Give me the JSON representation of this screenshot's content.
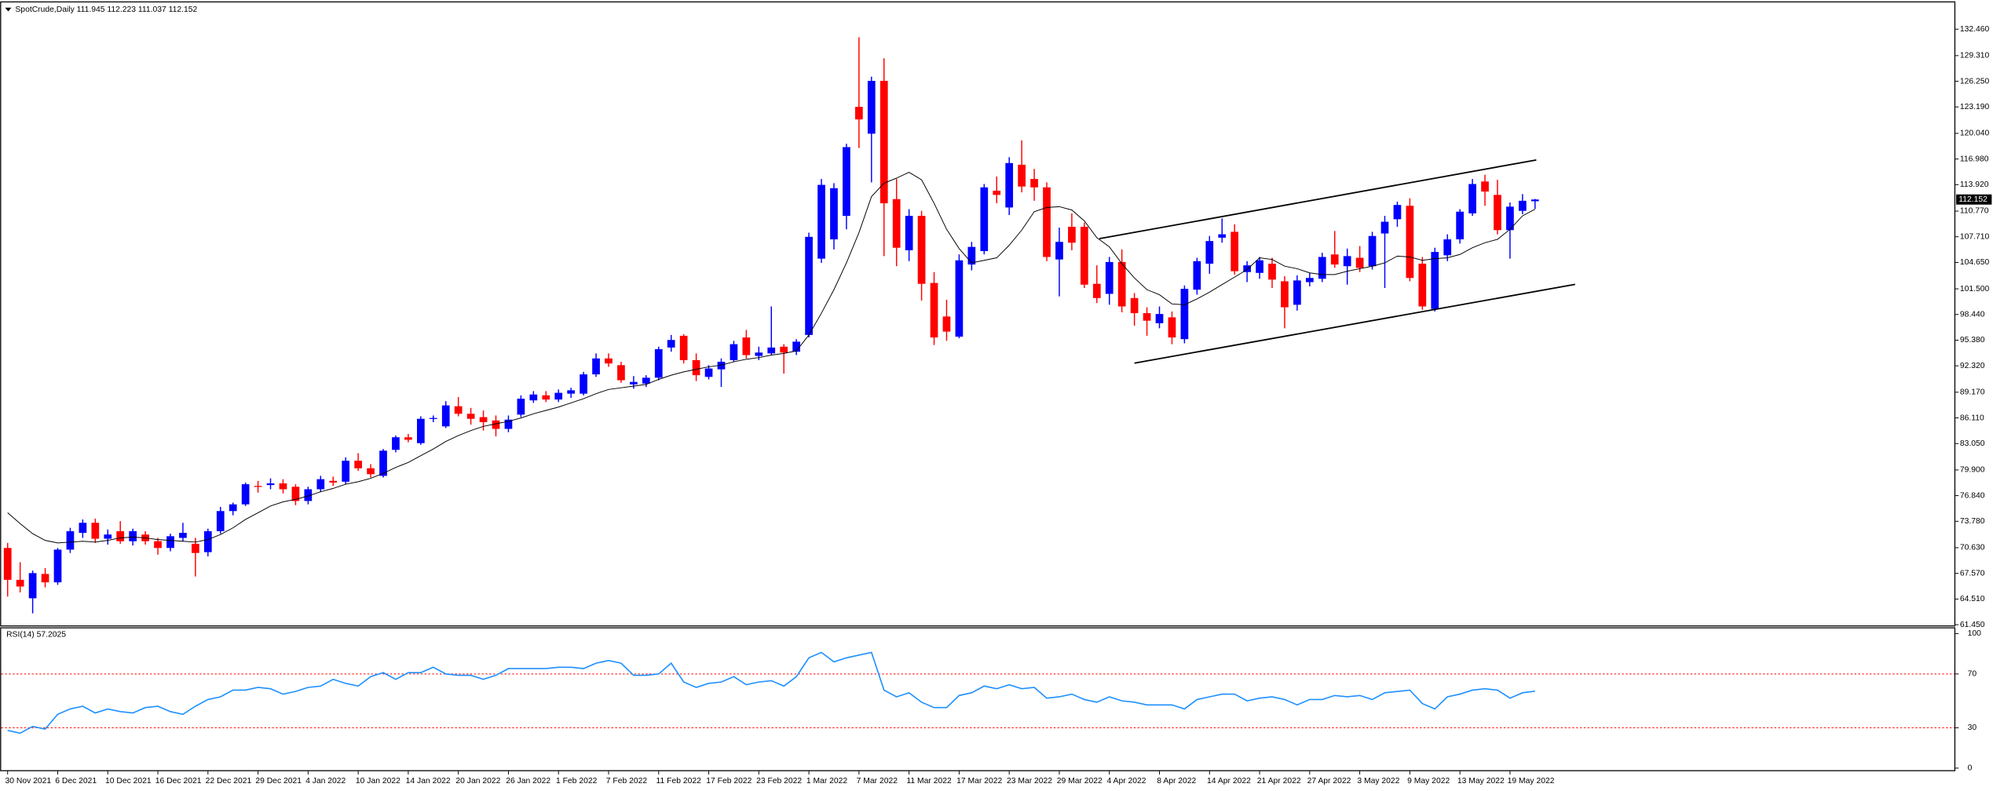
{
  "chart_data": [
    {
      "type": "candlestick",
      "title": "SpotCrude,Daily  111.945 112.223 111.037 112.152",
      "up_color": "#0000ff",
      "down_color": "#ff0000",
      "ma_color": "#000000",
      "trendline_color": "#000000",
      "x": [
        "30 Nov 2021",
        null,
        null,
        null,
        "6 Dec 2021",
        null,
        null,
        null,
        "10 Dec 2021",
        null,
        null,
        null,
        "16 Dec 2021",
        null,
        null,
        null,
        "22 Dec 2021",
        null,
        null,
        null,
        "29 Dec 2021",
        null,
        null,
        null,
        "4 Jan 2022",
        null,
        null,
        null,
        "10 Jan 2022",
        null,
        null,
        null,
        "14 Jan 2022",
        null,
        null,
        null,
        "20 Jan 2022",
        null,
        null,
        null,
        "26 Jan 2022",
        null,
        null,
        null,
        "1 Feb 2022",
        null,
        null,
        null,
        "7 Feb 2022",
        null,
        null,
        null,
        "11 Feb 2022",
        null,
        null,
        null,
        "17 Feb 2022",
        null,
        null,
        null,
        "23 Feb 2022",
        null,
        null,
        null,
        "1 Mar 2022",
        null,
        null,
        null,
        "7 Mar 2022",
        null,
        null,
        null,
        "11 Mar 2022",
        null,
        null,
        null,
        "17 Mar 2022",
        null,
        null,
        null,
        "23 Mar 2022",
        null,
        null,
        null,
        "29 Mar 2022",
        null,
        null,
        null,
        "4 Apr 2022",
        null,
        null,
        null,
        "8 Apr 2022",
        null,
        null,
        null,
        "14 Apr 2022",
        null,
        null,
        null,
        "21 Apr 2022",
        null,
        null,
        null,
        "27 Apr 2022",
        null,
        null,
        null,
        "3 May 2022",
        null,
        null,
        null,
        "9 May 2022",
        null,
        null,
        null,
        "13 May 2022",
        null,
        null,
        null,
        "19 May 2022",
        null,
        null
      ],
      "ohlc": [
        [
          70.6,
          71.2,
          64.8,
          66.8
        ],
        [
          66.8,
          68.9,
          65.3,
          66.0
        ],
        [
          64.6,
          67.9,
          62.8,
          67.6
        ],
        [
          67.5,
          68.2,
          65.9,
          66.5
        ],
        [
          66.5,
          70.6,
          66.2,
          70.4
        ],
        [
          70.4,
          73.0,
          70.0,
          72.6
        ],
        [
          72.4,
          74.0,
          71.8,
          73.6
        ],
        [
          73.6,
          74.1,
          71.2,
          71.7
        ],
        [
          71.7,
          72.8,
          71.0,
          72.2
        ],
        [
          72.6,
          73.8,
          71.1,
          71.4
        ],
        [
          71.4,
          72.9,
          70.9,
          72.6
        ],
        [
          72.2,
          72.6,
          71.0,
          71.4
        ],
        [
          71.4,
          71.8,
          69.8,
          70.6
        ],
        [
          70.6,
          72.3,
          70.2,
          72.0
        ],
        [
          71.8,
          73.6,
          71.4,
          72.4
        ],
        [
          71.1,
          71.8,
          67.2,
          70.0
        ],
        [
          70.1,
          72.9,
          69.6,
          72.6
        ],
        [
          72.6,
          75.5,
          72.3,
          75.0
        ],
        [
          75.0,
          76.0,
          74.5,
          75.8
        ],
        [
          75.8,
          78.4,
          75.6,
          78.2
        ],
        [
          78.0,
          78.6,
          77.2,
          77.9
        ],
        [
          78.1,
          78.9,
          77.6,
          78.3
        ],
        [
          78.3,
          78.8,
          77.1,
          77.6
        ],
        [
          77.9,
          78.2,
          75.7,
          76.2
        ],
        [
          76.2,
          77.9,
          75.8,
          77.6
        ],
        [
          77.6,
          79.2,
          77.3,
          78.8
        ],
        [
          78.6,
          79.1,
          78.0,
          78.4
        ],
        [
          78.5,
          81.4,
          78.2,
          81.0
        ],
        [
          81.0,
          81.9,
          79.8,
          80.1
        ],
        [
          80.1,
          80.6,
          79.0,
          79.4
        ],
        [
          79.2,
          82.4,
          79.0,
          82.2
        ],
        [
          82.3,
          84.0,
          82.0,
          83.8
        ],
        [
          83.8,
          84.2,
          83.2,
          83.5
        ],
        [
          83.1,
          86.3,
          82.9,
          86.0
        ],
        [
          86.0,
          86.4,
          85.6,
          86.1
        ],
        [
          85.1,
          88.1,
          84.9,
          87.6
        ],
        [
          87.5,
          88.6,
          86.3,
          86.6
        ],
        [
          86.6,
          87.3,
          85.3,
          86.0
        ],
        [
          86.2,
          87.0,
          84.6,
          85.6
        ],
        [
          85.8,
          86.4,
          83.9,
          84.8
        ],
        [
          84.8,
          86.4,
          84.4,
          85.9
        ],
        [
          86.5,
          88.8,
          86.2,
          88.4
        ],
        [
          88.2,
          89.3,
          87.9,
          88.9
        ],
        [
          88.8,
          89.3,
          88.0,
          88.3
        ],
        [
          88.3,
          89.5,
          88.0,
          89.1
        ],
        [
          89.0,
          89.7,
          88.5,
          89.4
        ],
        [
          89.0,
          91.6,
          88.8,
          91.3
        ],
        [
          91.3,
          93.8,
          91.0,
          93.2
        ],
        [
          93.2,
          93.8,
          92.2,
          92.6
        ],
        [
          92.4,
          92.8,
          90.3,
          90.6
        ],
        [
          90.1,
          91.1,
          89.6,
          90.4
        ],
        [
          90.2,
          91.2,
          89.8,
          90.9
        ],
        [
          90.9,
          94.6,
          90.6,
          94.3
        ],
        [
          94.5,
          96.0,
          94.0,
          95.4
        ],
        [
          95.9,
          96.1,
          92.6,
          93.0
        ],
        [
          93.0,
          93.8,
          90.5,
          91.2
        ],
        [
          91.0,
          92.4,
          90.7,
          92.0
        ],
        [
          91.9,
          93.2,
          89.8,
          92.8
        ],
        [
          93.0,
          95.3,
          92.8,
          94.9
        ],
        [
          95.7,
          96.6,
          93.2,
          93.6
        ],
        [
          93.5,
          94.6,
          93.0,
          93.9
        ],
        [
          93.8,
          99.4,
          93.6,
          94.5
        ],
        [
          94.6,
          94.9,
          91.4,
          93.9
        ],
        [
          94.0,
          95.5,
          93.6,
          95.2
        ],
        [
          96.0,
          108.2,
          95.7,
          107.7
        ],
        [
          105.1,
          114.6,
          104.6,
          113.9
        ],
        [
          107.4,
          114.1,
          106.2,
          113.5
        ],
        [
          110.2,
          118.8,
          108.6,
          118.4
        ],
        [
          123.2,
          131.5,
          118.3,
          121.7
        ],
        [
          120.0,
          126.8,
          114.2,
          126.3
        ],
        [
          126.3,
          129.0,
          105.4,
          111.7
        ],
        [
          112.2,
          114.6,
          104.2,
          106.4
        ],
        [
          106.1,
          111.0,
          104.8,
          110.2
        ],
        [
          110.2,
          110.8,
          100.1,
          102.1
        ],
        [
          102.2,
          103.5,
          94.8,
          95.7
        ],
        [
          98.2,
          100.2,
          95.3,
          96.4
        ],
        [
          95.8,
          105.6,
          95.6,
          104.9
        ],
        [
          104.4,
          107.1,
          103.7,
          106.5
        ],
        [
          106.0,
          114.0,
          105.6,
          113.6
        ],
        [
          113.2,
          114.9,
          111.7,
          112.7
        ],
        [
          111.2,
          117.2,
          110.3,
          116.5
        ],
        [
          116.3,
          119.2,
          113.0,
          113.7
        ],
        [
          114.6,
          115.8,
          112.0,
          113.6
        ],
        [
          113.6,
          114.2,
          104.8,
          105.3
        ],
        [
          105.0,
          108.8,
          100.6,
          107.1
        ],
        [
          108.9,
          110.5,
          106.1,
          107.0
        ],
        [
          108.9,
          109.4,
          101.6,
          102.0
        ],
        [
          102.1,
          104.3,
          99.8,
          100.4
        ],
        [
          100.9,
          105.3,
          99.6,
          104.7
        ],
        [
          104.7,
          106.2,
          98.7,
          99.4
        ],
        [
          100.4,
          101.0,
          97.1,
          98.6
        ],
        [
          98.6,
          99.3,
          95.9,
          97.7
        ],
        [
          97.4,
          99.4,
          96.8,
          98.5
        ],
        [
          98.1,
          98.8,
          94.9,
          95.7
        ],
        [
          95.5,
          101.9,
          95.0,
          101.5
        ],
        [
          101.4,
          105.2,
          100.8,
          104.8
        ],
        [
          104.5,
          107.8,
          103.3,
          107.2
        ],
        [
          107.6,
          109.9,
          107.0,
          108.0
        ],
        [
          108.3,
          109.2,
          103.2,
          103.6
        ],
        [
          103.5,
          104.8,
          102.3,
          104.3
        ],
        [
          103.4,
          105.3,
          102.7,
          104.9
        ],
        [
          104.5,
          105.2,
          101.6,
          102.6
        ],
        [
          102.4,
          103.0,
          96.8,
          99.3
        ],
        [
          99.6,
          103.1,
          98.9,
          102.5
        ],
        [
          102.3,
          103.4,
          101.8,
          102.8
        ],
        [
          102.7,
          105.8,
          102.3,
          105.3
        ],
        [
          105.6,
          108.4,
          104.0,
          104.4
        ],
        [
          104.2,
          106.3,
          102.0,
          105.4
        ],
        [
          105.2,
          106.6,
          103.5,
          104.0
        ],
        [
          104.2,
          108.3,
          103.8,
          107.8
        ],
        [
          108.1,
          110.2,
          101.6,
          109.5
        ],
        [
          109.8,
          111.9,
          108.9,
          111.5
        ],
        [
          111.4,
          112.3,
          102.4,
          102.8
        ],
        [
          104.5,
          105.3,
          99.0,
          99.4
        ],
        [
          99.1,
          106.4,
          98.8,
          105.9
        ],
        [
          105.5,
          108.0,
          104.8,
          107.4
        ],
        [
          107.4,
          111.0,
          106.9,
          110.7
        ],
        [
          110.5,
          114.6,
          110.2,
          114.0
        ],
        [
          114.3,
          115.1,
          111.4,
          113.1
        ],
        [
          112.7,
          114.5,
          108.0,
          108.5
        ],
        [
          108.5,
          111.8,
          105.1,
          111.3
        ],
        [
          110.8,
          112.8,
          110.4,
          112.0
        ],
        [
          111.945,
          112.223,
          111.037,
          112.152
        ]
      ],
      "ma": [
        74.8,
        73.5,
        72.3,
        71.5,
        71.2,
        71.3,
        71.4,
        71.3,
        71.5,
        71.8,
        71.9,
        71.8,
        71.6,
        71.5,
        71.4,
        71.3,
        71.6,
        72.2,
        73.0,
        74.0,
        74.8,
        75.6,
        76.1,
        76.4,
        76.8,
        77.3,
        77.7,
        78.2,
        78.5,
        78.9,
        79.5,
        80.2,
        80.8,
        81.6,
        82.4,
        83.3,
        84.0,
        84.6,
        85.1,
        85.4,
        85.7,
        86.1,
        86.6,
        87.0,
        87.4,
        87.9,
        88.4,
        89.0,
        89.5,
        89.7,
        89.9,
        90.1,
        90.7,
        91.2,
        91.6,
        91.9,
        92.2,
        92.4,
        92.8,
        93.1,
        93.3,
        93.6,
        93.8,
        94.1,
        96.0,
        98.6,
        101.4,
        104.6,
        108.2,
        112.5,
        114.1,
        114.7,
        115.4,
        114.5,
        111.7,
        108.6,
        106.3,
        104.6,
        104.9,
        105.2,
        106.7,
        108.5,
        110.7,
        111.2,
        111.3,
        110.9,
        109.6,
        107.6,
        106.5,
        104.5,
        102.8,
        101.4,
        100.8,
        99.7,
        99.6,
        100.3,
        101.1,
        102.0,
        102.9,
        103.8,
        105.2,
        105.0,
        104.2,
        103.9,
        103.4,
        103.2,
        103.2,
        103.6,
        103.9,
        104.2,
        104.6,
        105.4,
        105.3,
        104.9,
        105.1,
        105.2,
        105.6,
        106.4,
        107.0,
        107.4,
        108.6,
        110.2,
        111.0
      ],
      "trendlines": [
        {
          "x": [
            87.2,
            122.1
          ],
          "y": [
            107.48,
            116.87
          ]
        },
        {
          "x": [
            90.0,
            125.2
          ],
          "y": [
            92.64,
            102.03
          ]
        }
      ],
      "ylim": [
        61.3,
        135.64
      ],
      "yticks": [
        {
          "value": 132.46,
          "label": "132.460"
        },
        {
          "value": 129.31,
          "label": "129.310"
        },
        {
          "value": 126.25,
          "label": "126.250"
        },
        {
          "value": 123.19,
          "label": "123.190"
        },
        {
          "value": 120.04,
          "label": "120.040"
        },
        {
          "value": 116.98,
          "label": "116.980"
        },
        {
          "value": 113.92,
          "label": "113.920"
        },
        {
          "value": 110.77,
          "label": "110.770"
        },
        {
          "value": 107.71,
          "label": "107.710"
        },
        {
          "value": 104.65,
          "label": "104.650"
        },
        {
          "value": 101.5,
          "label": "101.500"
        },
        {
          "value": 98.44,
          "label": "98.440"
        },
        {
          "value": 95.38,
          "label": "95.380"
        },
        {
          "value": 92.32,
          "label": "92.320"
        },
        {
          "value": 89.17,
          "label": "89.170"
        },
        {
          "value": 86.11,
          "label": "86.110"
        },
        {
          "value": 83.05,
          "label": "83.050"
        },
        {
          "value": 79.9,
          "label": "79.900"
        },
        {
          "value": 76.84,
          "label": "76.840"
        },
        {
          "value": 73.78,
          "label": "73.780"
        },
        {
          "value": 70.63,
          "label": "70.630"
        },
        {
          "value": 67.57,
          "label": "67.570"
        },
        {
          "value": 64.51,
          "label": "64.510"
        },
        {
          "value": 61.45,
          "label": "61.450"
        }
      ]
    },
    {
      "type": "line",
      "title": "RSI(14) 57.2025",
      "color": "#1e90ff",
      "level_color": "#ff0000",
      "values": [
        28,
        26,
        31,
        29,
        40,
        44,
        46,
        41,
        44,
        42,
        41,
        45,
        46,
        42,
        40,
        46,
        51,
        53,
        58,
        58,
        60,
        59,
        55,
        57,
        60,
        61,
        66,
        63,
        61,
        68,
        71,
        66,
        71,
        71,
        75,
        70,
        69,
        69,
        66,
        69,
        74,
        74,
        74,
        74,
        75,
        75,
        74,
        78,
        80,
        78,
        69,
        69,
        70,
        78,
        64,
        60,
        63,
        64,
        68,
        62,
        64,
        65,
        61,
        68,
        82,
        86,
        79,
        82,
        84,
        86,
        58,
        53,
        56,
        49,
        45,
        45,
        54,
        56,
        61,
        59,
        62,
        59,
        60,
        52,
        53,
        55,
        51,
        49,
        53,
        50,
        49,
        47,
        47,
        47,
        44,
        51,
        53,
        55,
        55,
        50,
        52,
        53,
        51,
        47,
        51,
        51,
        54,
        53,
        54,
        51,
        56,
        57,
        58,
        48,
        44,
        53,
        55,
        58,
        59,
        58,
        52,
        56,
        57.2025
      ],
      "levels": [
        70,
        30
      ],
      "ylim": [
        -1.9,
        103.8
      ],
      "yticks": [
        100,
        70,
        30,
        0
      ]
    }
  ]
}
